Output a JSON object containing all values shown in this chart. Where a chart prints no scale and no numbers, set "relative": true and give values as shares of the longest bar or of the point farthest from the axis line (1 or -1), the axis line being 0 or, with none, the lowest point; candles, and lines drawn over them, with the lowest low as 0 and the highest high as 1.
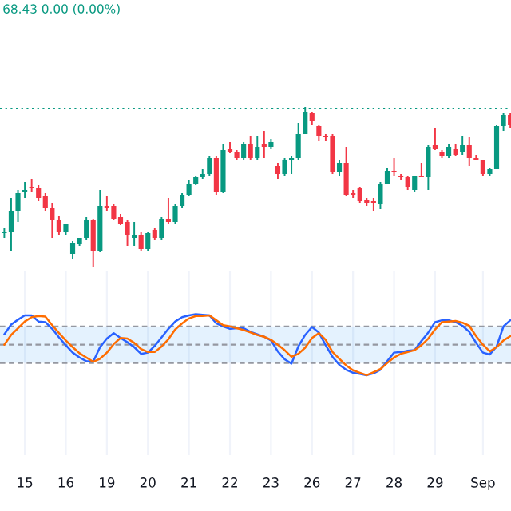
{
  "chart_data": [
    {
      "type": "candlestick",
      "relative": true,
      "categories": [
        null,
        null,
        null,
        null,
        null,
        null,
        null,
        null,
        null,
        null,
        null,
        null,
        null,
        null,
        null,
        null,
        null,
        null,
        null,
        null,
        null,
        null,
        null,
        null,
        null,
        null,
        null,
        null,
        null,
        null,
        null,
        null,
        null,
        null,
        null,
        null,
        null,
        null,
        null,
        null,
        null,
        null,
        null,
        null,
        null,
        null,
        null,
        null,
        null,
        null,
        null,
        null,
        null,
        null,
        null,
        null,
        null,
        null,
        null,
        null,
        null,
        null,
        null,
        null,
        null,
        null,
        null,
        null,
        null,
        null,
        null,
        null,
        null,
        null,
        null
      ],
      "ohlc": [
        [
          0.21,
          0.24,
          0.18,
          0.22
        ],
        [
          0.22,
          0.43,
          0.1,
          0.35
        ],
        [
          0.35,
          0.48,
          0.28,
          0.46
        ],
        [
          0.47,
          0.53,
          0.43,
          0.48
        ],
        [
          0.5,
          0.55,
          0.47,
          0.49
        ],
        [
          0.49,
          0.51,
          0.41,
          0.43
        ],
        [
          0.44,
          0.46,
          0.35,
          0.37
        ],
        [
          0.37,
          0.4,
          0.18,
          0.29
        ],
        [
          0.29,
          0.32,
          0.2,
          0.22
        ],
        [
          0.22,
          0.27,
          0.2,
          0.27
        ],
        [
          0.08,
          0.16,
          0.05,
          0.15
        ],
        [
          0.14,
          0.18,
          0.13,
          0.18
        ],
        [
          0.18,
          0.31,
          0.17,
          0.29
        ],
        [
          0.29,
          0.3,
          0.0,
          0.1
        ],
        [
          0.1,
          0.48,
          0.09,
          0.38
        ],
        [
          0.38,
          0.44,
          0.35,
          0.37
        ],
        [
          0.38,
          0.39,
          0.29,
          0.3
        ],
        [
          0.31,
          0.33,
          0.26,
          0.27
        ],
        [
          0.28,
          0.29,
          0.13,
          0.2
        ],
        [
          0.18,
          0.28,
          0.13,
          0.2
        ],
        [
          0.2,
          0.22,
          0.1,
          0.11
        ],
        [
          0.11,
          0.22,
          0.1,
          0.21
        ],
        [
          0.23,
          0.24,
          0.17,
          0.18
        ],
        [
          0.18,
          0.31,
          0.17,
          0.3
        ],
        [
          0.3,
          0.43,
          0.27,
          0.28
        ],
        [
          0.28,
          0.39,
          0.27,
          0.38
        ],
        [
          0.38,
          0.46,
          0.37,
          0.45
        ],
        [
          0.45,
          0.54,
          0.44,
          0.52
        ],
        [
          0.52,
          0.57,
          0.51,
          0.56
        ],
        [
          0.56,
          0.61,
          0.55,
          0.58
        ],
        [
          0.58,
          0.69,
          0.57,
          0.68
        ],
        [
          0.68,
          0.69,
          0.45,
          0.47
        ],
        [
          0.47,
          0.77,
          0.46,
          0.73
        ],
        [
          0.74,
          0.78,
          0.71,
          0.72
        ],
        [
          0.72,
          0.73,
          0.67,
          0.68
        ],
        [
          0.68,
          0.78,
          0.67,
          0.77
        ],
        [
          0.77,
          0.82,
          0.67,
          0.68
        ],
        [
          0.68,
          0.82,
          0.67,
          0.75
        ],
        [
          0.77,
          0.85,
          0.68,
          0.75
        ],
        [
          0.75,
          0.8,
          0.74,
          0.78
        ],
        [
          0.63,
          0.65,
          0.55,
          0.58
        ],
        [
          0.58,
          0.68,
          0.57,
          0.67
        ],
        [
          0.67,
          0.69,
          0.58,
          0.68
        ],
        [
          0.68,
          0.9,
          0.67,
          0.83
        ],
        [
          0.83,
          1.0,
          0.83,
          0.97
        ],
        [
          0.96,
          0.97,
          0.89,
          0.91
        ],
        [
          0.88,
          0.89,
          0.79,
          0.82
        ],
        [
          0.82,
          0.83,
          0.79,
          0.81
        ],
        [
          0.82,
          0.83,
          0.58,
          0.59
        ],
        [
          0.59,
          0.67,
          0.57,
          0.65
        ],
        [
          0.65,
          0.75,
          0.44,
          0.45
        ],
        [
          0.46,
          0.48,
          0.43,
          0.45
        ],
        [
          0.49,
          0.5,
          0.4,
          0.41
        ],
        [
          0.42,
          0.43,
          0.38,
          0.4
        ],
        [
          0.41,
          0.43,
          0.35,
          0.4
        ],
        [
          0.39,
          0.53,
          0.36,
          0.52
        ],
        [
          0.52,
          0.62,
          0.52,
          0.6
        ],
        [
          0.6,
          0.68,
          0.57,
          0.59
        ],
        [
          0.57,
          0.58,
          0.54,
          0.56
        ],
        [
          0.56,
          0.57,
          0.48,
          0.5
        ],
        [
          0.48,
          0.57,
          0.47,
          0.57
        ],
        [
          0.57,
          0.65,
          0.56,
          0.56
        ],
        [
          0.56,
          0.76,
          0.48,
          0.75
        ],
        [
          0.76,
          0.87,
          0.73,
          0.74
        ],
        [
          0.72,
          0.73,
          0.68,
          0.69
        ],
        [
          0.69,
          0.77,
          0.68,
          0.75
        ],
        [
          0.74,
          0.77,
          0.69,
          0.7
        ],
        [
          0.72,
          0.82,
          0.7,
          0.76
        ],
        [
          0.76,
          0.81,
          0.63,
          0.68
        ],
        [
          0.68,
          0.7,
          0.67,
          0.67
        ],
        [
          0.67,
          0.67,
          0.57,
          0.58
        ],
        [
          0.58,
          0.62,
          0.57,
          0.61
        ],
        [
          0.61,
          0.89,
          0.61,
          0.88
        ],
        [
          0.88,
          0.96,
          0.85,
          0.95
        ],
        [
          0.95,
          0.96,
          0.87,
          0.89
        ]
      ],
      "colors": [
        "#089981",
        "#089981",
        "#089981",
        "#089981",
        "#f23645",
        "#f23645",
        "#f23645",
        "#f23645",
        "#f23645",
        "#089981",
        "#089981",
        "#089981",
        "#089981",
        "#f23645",
        "#089981",
        "#f23645",
        "#f23645",
        "#f23645",
        "#f23645",
        "#089981",
        "#f23645",
        "#089981",
        "#f23645",
        "#089981",
        "#f23645",
        "#089981",
        "#089981",
        "#089981",
        "#089981",
        "#089981",
        "#089981",
        "#f23645",
        "#089981",
        "#f23645",
        "#f23645",
        "#089981",
        "#f23645",
        "#089981",
        "#f23645",
        "#089981",
        "#f23645",
        "#089981",
        "#089981",
        "#089981",
        "#089981",
        "#f23645",
        "#f23645",
        "#f23645",
        "#f23645",
        "#089981",
        "#f23645",
        "#f23645",
        "#f23645",
        "#f23645",
        "#f23645",
        "#089981",
        "#089981",
        "#f23645",
        "#f23645",
        "#f23645",
        "#089981",
        "#f23645",
        "#089981",
        "#f23645",
        "#f23645",
        "#089981",
        "#f23645",
        "#089981",
        "#f23645",
        "#f23645",
        "#f23645",
        "#089981",
        "#089981",
        "#089981",
        "#f23645"
      ],
      "ref_lines": [
        {
          "axis": "y",
          "value": 0.99,
          "color": "#089981",
          "line_style": "dotted"
        }
      ],
      "annotations": [
        "68.43 0.00 (0.00%)"
      ]
    },
    {
      "type": "line",
      "relative": true,
      "grid": "x",
      "categories": [
        null,
        null,
        null,
        "15",
        null,
        null,
        null,
        null,
        null,
        "16",
        null,
        null,
        null,
        null,
        null,
        "19",
        null,
        null,
        null,
        null,
        null,
        "20",
        null,
        null,
        null,
        null,
        null,
        "21",
        null,
        null,
        null,
        null,
        null,
        "22",
        null,
        null,
        null,
        null,
        null,
        "23",
        null,
        null,
        null,
        null,
        null,
        "26",
        null,
        null,
        null,
        null,
        null,
        "27",
        null,
        null,
        null,
        null,
        null,
        "28",
        null,
        null,
        null,
        null,
        null,
        "29",
        null,
        null,
        null,
        null,
        null,
        null,
        "Sep",
        null,
        null,
        null,
        null
      ],
      "series": [
        {
          "color": "#2962ff",
          "values": [
            0.67,
            0.83,
            0.91,
            0.98,
            0.98,
            0.88,
            0.87,
            0.76,
            0.62,
            0.49,
            0.37,
            0.29,
            0.23,
            0.22,
            0.46,
            0.6,
            0.69,
            0.61,
            0.54,
            0.46,
            0.35,
            0.37,
            0.48,
            0.62,
            0.76,
            0.88,
            0.95,
            0.98,
            1.0,
            0.99,
            0.98,
            0.85,
            0.8,
            0.76,
            0.77,
            0.77,
            0.71,
            0.67,
            0.63,
            0.57,
            0.39,
            0.26,
            0.19,
            0.47,
            0.66,
            0.79,
            0.7,
            0.49,
            0.3,
            0.17,
            0.09,
            0.04,
            0.02,
            0.0,
            0.03,
            0.09,
            0.23,
            0.37,
            0.38,
            0.4,
            0.41,
            0.56,
            0.7,
            0.87,
            0.9,
            0.9,
            0.87,
            0.81,
            0.71,
            0.53,
            0.37,
            0.34,
            0.47,
            0.8,
            0.9
          ]
        },
        {
          "color": "#ff6d00",
          "values": [
            0.5,
            0.66,
            0.77,
            0.88,
            0.95,
            0.97,
            0.96,
            0.82,
            0.69,
            0.57,
            0.46,
            0.36,
            0.29,
            0.22,
            0.27,
            0.37,
            0.51,
            0.61,
            0.6,
            0.53,
            0.43,
            0.38,
            0.38,
            0.47,
            0.59,
            0.75,
            0.85,
            0.93,
            0.97,
            0.97,
            0.98,
            0.9,
            0.82,
            0.8,
            0.77,
            0.74,
            0.7,
            0.66,
            0.63,
            0.58,
            0.5,
            0.41,
            0.3,
            0.35,
            0.45,
            0.61,
            0.69,
            0.58,
            0.38,
            0.27,
            0.16,
            0.08,
            0.04,
            0.0,
            0.05,
            0.1,
            0.2,
            0.29,
            0.35,
            0.38,
            0.41,
            0.49,
            0.6,
            0.75,
            0.87,
            0.88,
            0.89,
            0.86,
            0.81,
            0.64,
            0.5,
            0.39,
            0.46,
            0.57,
            0.64
          ]
        }
      ],
      "bands": [
        {
          "axis": "y",
          "from": 0.2,
          "to": 0.8,
          "color": "#2196f3"
        }
      ],
      "ref_lines": [
        {
          "axis": "y",
          "value": 0.2,
          "color": "#9598a1",
          "line_style": "dashed"
        },
        {
          "axis": "y",
          "value": 0.5,
          "color": "#9598a1",
          "line_style": "dashed"
        },
        {
          "axis": "y",
          "value": 0.8,
          "color": "#9598a1",
          "line_style": "dashed"
        }
      ]
    }
  ]
}
